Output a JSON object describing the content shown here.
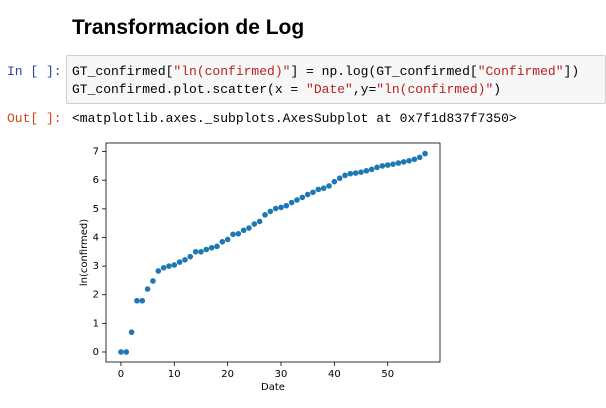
{
  "heading": "Transformacion de Log",
  "input_cell": {
    "prompt": "In [ ]:",
    "code": [
      [
        "GT_confirmed[",
        "\"ln(confirmed)\"",
        "] = np.log(GT_confirmed[",
        "\"Confirmed\"",
        "])"
      ],
      [
        "GT_confirmed.plot.scatter(x = ",
        "\"Date\"",
        ",y=",
        "\"ln(confirmed)\"",
        ")"
      ]
    ]
  },
  "output_cell": {
    "prompt": "Out[ ]:",
    "text": "<matplotlib.axes._subplots.AxesSubplot at 0x7f1d837f7350>"
  },
  "chart_data": {
    "type": "scatter",
    "xlabel": "Date",
    "ylabel": "ln(confirmed)",
    "color": "#1f77b4",
    "x": [
      0,
      1,
      2,
      3,
      4,
      5,
      6,
      7,
      8,
      9,
      10,
      11,
      12,
      13,
      14,
      15,
      16,
      17,
      18,
      19,
      20,
      21,
      22,
      23,
      24,
      25,
      26,
      27,
      28,
      29,
      30,
      31,
      32,
      33,
      34,
      35,
      36,
      37,
      38,
      39,
      40,
      41,
      42,
      43,
      44,
      45,
      46,
      47,
      48,
      49,
      50,
      51,
      52,
      53,
      54,
      55,
      56,
      57
    ],
    "y": [
      0,
      0,
      0.69,
      1.79,
      1.79,
      2.2,
      2.48,
      2.83,
      2.94,
      3.0,
      3.04,
      3.14,
      3.22,
      3.33,
      3.5,
      3.5,
      3.58,
      3.64,
      3.69,
      3.85,
      3.93,
      4.11,
      4.13,
      4.25,
      4.33,
      4.47,
      4.56,
      4.79,
      4.91,
      5.01,
      5.05,
      5.11,
      5.22,
      5.31,
      5.4,
      5.5,
      5.58,
      5.68,
      5.72,
      5.8,
      5.95,
      6.07,
      6.17,
      6.23,
      6.25,
      6.28,
      6.33,
      6.38,
      6.45,
      6.5,
      6.53,
      6.56,
      6.6,
      6.64,
      6.68,
      6.73,
      6.8,
      6.93
    ],
    "xlim": [
      -2.8,
      59.8
    ],
    "ylim": [
      -0.35,
      7.3
    ],
    "xticks": [
      0,
      10,
      20,
      30,
      40,
      50
    ],
    "yticks": [
      0,
      1,
      2,
      3,
      4,
      5,
      6,
      7
    ]
  }
}
